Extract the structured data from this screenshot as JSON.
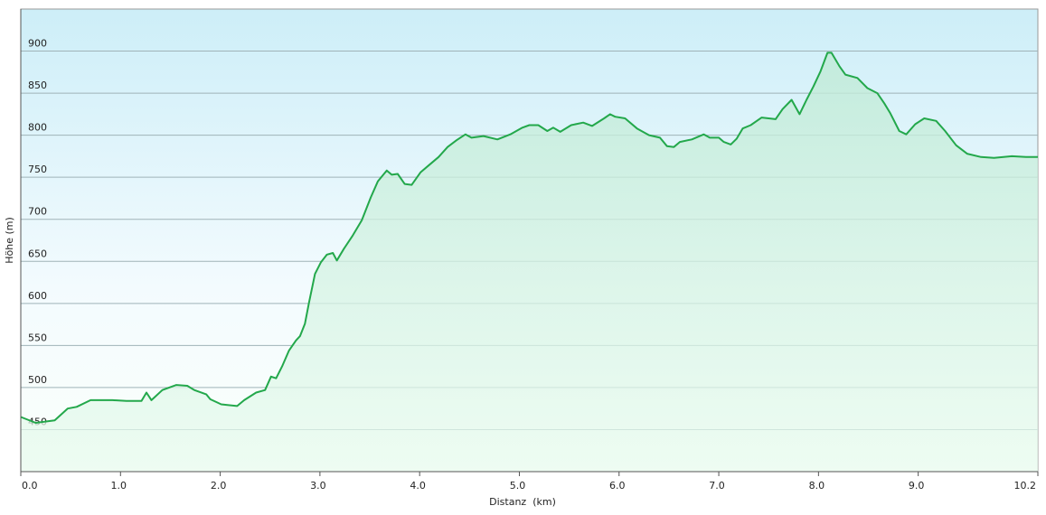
{
  "chart_data": {
    "type": "area",
    "x_label": "Distanz  (km)",
    "y_label": "Höhe (m)",
    "x": [
      0,
      0.15,
      0.34,
      0.47,
      0.56,
      0.7,
      0.92,
      1.06,
      1.21,
      1.26,
      1.31,
      1.42,
      1.56,
      1.67,
      1.74,
      1.86,
      1.9,
      2.01,
      2.17,
      2.24,
      2.36,
      2.45,
      2.51,
      2.56,
      2.62,
      2.69,
      2.76,
      2.8,
      2.85,
      2.89,
      2.95,
      3.01,
      3.07,
      3.13,
      3.17,
      3.24,
      3.33,
      3.42,
      3.51,
      3.58,
      3.67,
      3.72,
      3.78,
      3.85,
      3.92,
      4.01,
      4.1,
      4.19,
      4.28,
      4.37,
      4.46,
      4.52,
      4.64,
      4.78,
      4.91,
      5.03,
      5.1,
      5.19,
      5.28,
      5.34,
      5.41,
      5.52,
      5.64,
      5.73,
      5.85,
      5.91,
      5.96,
      6.06,
      6.18,
      6.3,
      6.41,
      6.48,
      6.55,
      6.61,
      6.73,
      6.85,
      6.91,
      7.0,
      7.05,
      7.12,
      7.18,
      7.24,
      7.32,
      7.43,
      7.57,
      7.64,
      7.73,
      7.81,
      7.88,
      7.95,
      8.02,
      8.09,
      8.13,
      8.21,
      8.27,
      8.39,
      8.49,
      8.59,
      8.66,
      8.72,
      8.81,
      8.88,
      8.97,
      9.06,
      9.18,
      9.27,
      9.38,
      9.49,
      9.63,
      9.76,
      9.94,
      10.08,
      10.2
    ],
    "values": [
      465,
      458,
      461,
      475,
      477,
      485,
      485,
      484,
      484,
      494,
      485,
      497,
      503,
      502,
      497,
      492,
      486,
      480,
      478,
      485,
      494,
      497,
      513,
      511,
      525,
      544,
      556,
      561,
      576,
      601,
      635,
      649,
      658,
      660,
      651,
      665,
      681,
      699,
      726,
      745,
      758,
      753,
      754,
      742,
      741,
      756,
      765,
      774,
      786,
      794,
      801,
      797,
      799,
      795,
      801,
      809,
      812,
      812,
      805,
      809,
      804,
      812,
      815,
      811,
      820,
      825,
      822,
      820,
      808,
      800,
      797,
      787,
      786,
      792,
      795,
      801,
      797,
      797,
      792,
      789,
      796,
      808,
      812,
      821,
      819,
      831,
      842,
      825,
      842,
      858,
      876,
      898,
      898,
      882,
      872,
      868,
      856,
      850,
      838,
      826,
      805,
      801,
      813,
      820,
      817,
      805,
      788,
      778,
      774,
      773,
      775,
      774,
      774
    ],
    "color": "#23a84b",
    "xlim": [
      0,
      10.2
    ],
    "ylim": [
      400,
      950
    ],
    "xticks": [
      {
        "value": 0,
        "label": "0.0"
      },
      {
        "value": 1,
        "label": "1.0"
      },
      {
        "value": 2,
        "label": "2.0"
      },
      {
        "value": 3,
        "label": "3.0"
      },
      {
        "value": 4,
        "label": "4.0"
      },
      {
        "value": 5,
        "label": "5.0"
      },
      {
        "value": 6,
        "label": "6.0"
      },
      {
        "value": 7,
        "label": "7.0"
      },
      {
        "value": 8,
        "label": "8.0"
      },
      {
        "value": 9,
        "label": "9.0"
      },
      10.2
    ],
    "yticks": [
      450,
      500,
      550,
      600,
      650,
      700,
      750,
      800,
      850,
      900
    ],
    "grid": true
  }
}
